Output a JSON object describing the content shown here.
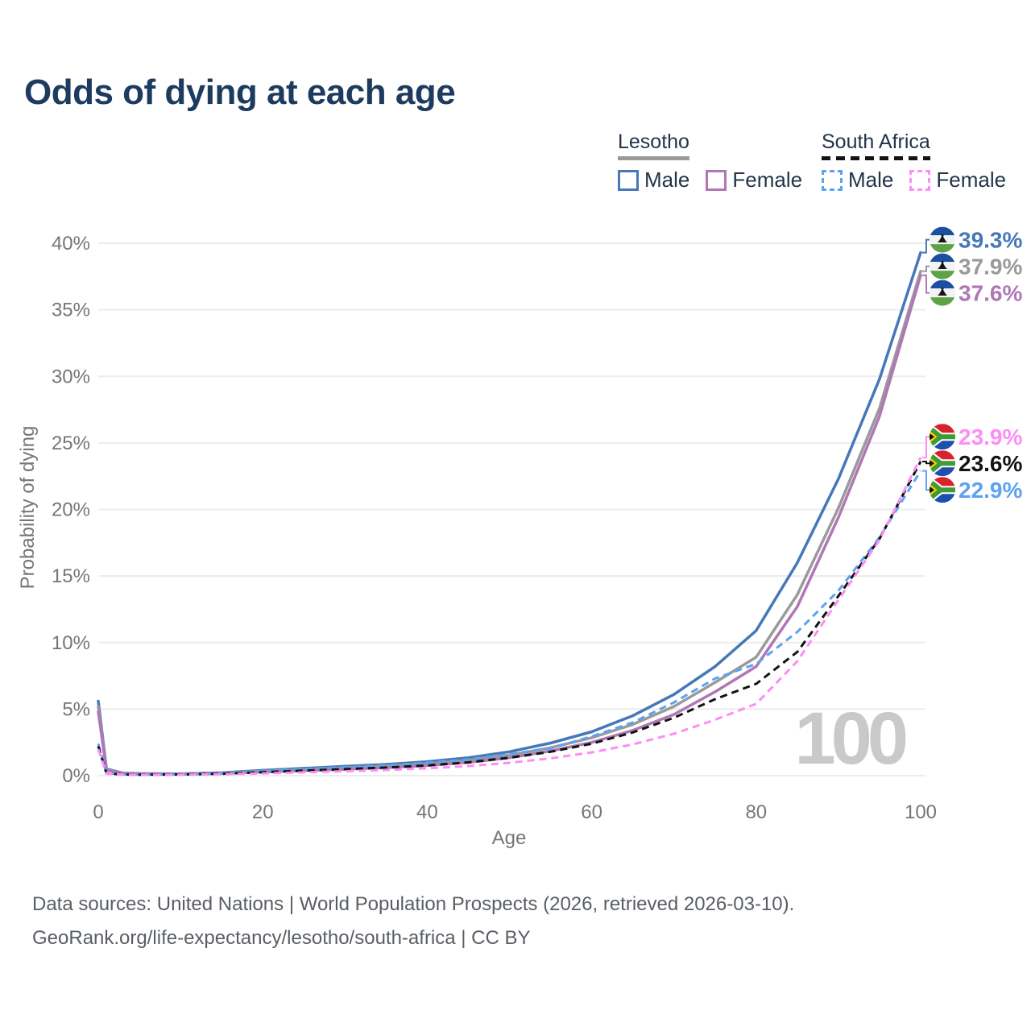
{
  "title": "Odds of dying at each age",
  "legend": {
    "groups": [
      {
        "country": "Lesotho",
        "line_style": "solid",
        "underline_color": "#9a9a9a",
        "items": [
          {
            "label": "Male",
            "color": "#4678b8"
          },
          {
            "label": "Female",
            "color": "#b077b5"
          }
        ]
      },
      {
        "country": "South Africa",
        "line_style": "dashed",
        "underline_color": "#131313",
        "items": [
          {
            "label": "Male",
            "color": "#5da2f2"
          },
          {
            "label": "Female",
            "color": "#fc8df5"
          }
        ]
      }
    ]
  },
  "chart_data": {
    "type": "line",
    "title": "Odds of dying at each age",
    "xlabel": "Age",
    "ylabel": "Probability of dying",
    "xlim": [
      0,
      100
    ],
    "ylim": [
      0,
      40
    ],
    "grid": true,
    "watermark": "100",
    "x_ticks": [
      0,
      20,
      40,
      60,
      80,
      100
    ],
    "y_ticks": [
      {
        "value": 0,
        "label": "0%"
      },
      {
        "value": 5,
        "label": "5%"
      },
      {
        "value": 10,
        "label": "10%"
      },
      {
        "value": 15,
        "label": "15%"
      },
      {
        "value": 20,
        "label": "20%"
      },
      {
        "value": 25,
        "label": "25%"
      },
      {
        "value": 30,
        "label": "30%"
      },
      {
        "value": 35,
        "label": "35%"
      },
      {
        "value": 40,
        "label": "40%"
      }
    ],
    "x": [
      0,
      1,
      3,
      5,
      10,
      15,
      20,
      25,
      30,
      35,
      40,
      45,
      50,
      55,
      60,
      65,
      70,
      75,
      80,
      85,
      90,
      95,
      100
    ],
    "series": [
      {
        "id": "lesotho-male",
        "name": "Lesotho Male",
        "country": "Lesotho",
        "sex": "Male",
        "color": "#4678b8",
        "dashed": false,
        "flag": "lesotho",
        "end_label": "39.3%",
        "values": [
          5.6,
          0.5,
          0.2,
          0.16,
          0.14,
          0.22,
          0.4,
          0.55,
          0.7,
          0.85,
          1.05,
          1.35,
          1.8,
          2.45,
          3.3,
          4.5,
          6.1,
          8.2,
          10.9,
          16.0,
          22.3,
          29.8,
          39.3
        ]
      },
      {
        "id": "lesotho-total",
        "name": "Lesotho",
        "country": "Lesotho",
        "sex": "Both",
        "color": "#9a9a9a",
        "dashed": false,
        "flag": "lesotho",
        "end_label": "37.9%",
        "values": [
          5.2,
          0.45,
          0.18,
          0.14,
          0.12,
          0.19,
          0.33,
          0.46,
          0.58,
          0.72,
          0.9,
          1.15,
          1.55,
          2.1,
          2.85,
          3.85,
          5.2,
          7.0,
          8.9,
          13.6,
          20.1,
          27.6,
          37.9
        ]
      },
      {
        "id": "lesotho-female",
        "name": "Lesotho Female",
        "country": "Lesotho",
        "sex": "Female",
        "color": "#b077b5",
        "dashed": false,
        "flag": "lesotho",
        "end_label": "37.6%",
        "values": [
          4.8,
          0.42,
          0.17,
          0.13,
          0.11,
          0.16,
          0.27,
          0.38,
          0.48,
          0.6,
          0.76,
          1.0,
          1.35,
          1.85,
          2.5,
          3.4,
          4.6,
          6.3,
          8.2,
          12.7,
          19.4,
          27.0,
          37.6
        ]
      },
      {
        "id": "south-africa-male",
        "name": "South Africa Male",
        "country": "South Africa",
        "sex": "Male",
        "color": "#5da2f2",
        "dashed": true,
        "flag": "south-africa",
        "end_label": "22.9%",
        "values": [
          2.4,
          0.18,
          0.1,
          0.08,
          0.1,
          0.18,
          0.35,
          0.5,
          0.63,
          0.78,
          0.97,
          1.22,
          1.62,
          2.05,
          2.95,
          4.0,
          5.5,
          7.3,
          8.4,
          10.8,
          13.9,
          17.9,
          22.9
        ]
      },
      {
        "id": "south-africa-total",
        "name": "South Africa",
        "country": "South Africa",
        "sex": "Both",
        "color": "#131313",
        "dashed": true,
        "flag": "south-africa",
        "end_label": "23.6%",
        "values": [
          2.2,
          0.16,
          0.09,
          0.07,
          0.09,
          0.14,
          0.26,
          0.38,
          0.49,
          0.61,
          0.77,
          1.0,
          1.35,
          1.8,
          2.4,
          3.25,
          4.35,
          5.75,
          6.9,
          9.3,
          13.5,
          17.8,
          23.6
        ]
      },
      {
        "id": "south-africa-female",
        "name": "South Africa Female",
        "country": "South Africa",
        "sex": "Female",
        "color": "#fc8df5",
        "dashed": true,
        "flag": "south-africa",
        "end_label": "23.9%",
        "values": [
          2.0,
          0.15,
          0.08,
          0.06,
          0.07,
          0.1,
          0.17,
          0.25,
          0.33,
          0.43,
          0.55,
          0.72,
          0.97,
          1.3,
          1.75,
          2.35,
          3.15,
          4.2,
          5.4,
          8.6,
          13.2,
          17.7,
          23.9
        ]
      }
    ]
  },
  "footer": {
    "line1": "Data sources: United Nations | World Population Prospects (2026, retrieved 2026-03-10).",
    "line2": "GeoRank.org/life-expectancy/lesotho/south-africa | CC BY"
  }
}
